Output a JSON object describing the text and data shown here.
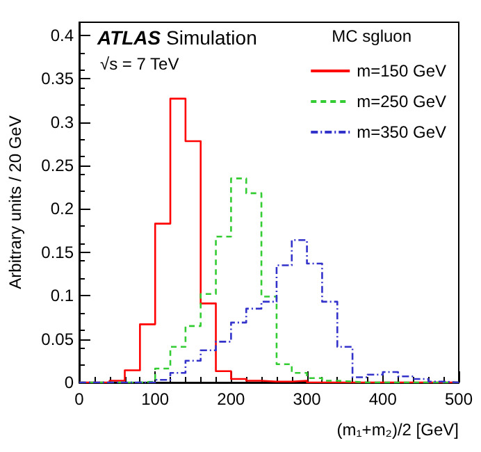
{
  "chart_data": {
    "type": "histogram",
    "annotations": [
      "ATLAS Simulation",
      "√s = 7 TeV"
    ],
    "xlabel": "(m₁+m₂)/2 [GeV]",
    "ylabel": "Arbitrary units / 20 GeV",
    "legend_title": "MC sgluon",
    "bins": [
      0,
      20,
      40,
      60,
      80,
      100,
      120,
      140,
      160,
      180,
      200,
      220,
      240,
      260,
      280,
      300,
      320,
      340,
      360,
      380,
      400,
      420,
      440,
      460,
      480,
      500
    ],
    "series": [
      {
        "name": "m=150 GeV",
        "color": "#ff0000",
        "line_style": "solid",
        "values": [
          0,
          0,
          0.002,
          0.014,
          0.067,
          0.183,
          0.327,
          0.278,
          0.091,
          0.013,
          0.004,
          0.002,
          0.001,
          0.001,
          0.002,
          0,
          0,
          0,
          0,
          0,
          0,
          0,
          0,
          0,
          0
        ]
      },
      {
        "name": "m=250 GeV",
        "color": "#33cc33",
        "line_style": "dashed",
        "values": [
          0,
          0,
          0,
          0,
          0.001,
          0.016,
          0.041,
          0.065,
          0.102,
          0.168,
          0.235,
          0.218,
          0.099,
          0.021,
          0.011,
          0.005,
          0.002,
          0.001,
          0,
          0,
          0,
          0,
          0,
          0,
          0
        ]
      },
      {
        "name": "m=350 GeV",
        "color": "#3333cc",
        "line_style": "dotted",
        "values": [
          0,
          0,
          0,
          0,
          0,
          0.003,
          0.011,
          0.025,
          0.037,
          0.047,
          0.069,
          0.085,
          0.093,
          0.135,
          0.164,
          0.137,
          0.093,
          0.041,
          0.006,
          0.009,
          0.012,
          0.007,
          0.004,
          0.001,
          0
        ]
      }
    ],
    "xlim": [
      0,
      500
    ],
    "xticks": [
      0,
      100,
      200,
      300,
      400,
      500
    ],
    "ylim": [
      0,
      0.415
    ],
    "yticks": [
      0,
      0.05,
      0.1,
      0.15,
      0.2,
      0.25,
      0.3,
      0.35,
      0.4
    ],
    "legend": "top right",
    "grid": false
  }
}
